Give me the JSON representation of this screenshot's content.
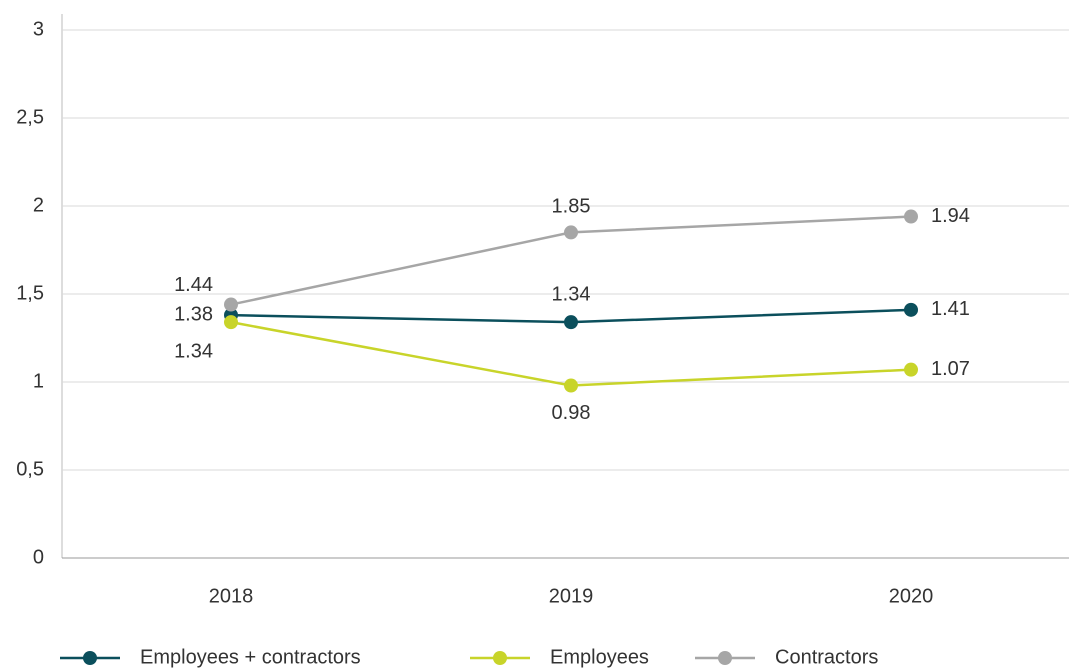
{
  "chart_data": {
    "type": "line",
    "categories": [
      "2018",
      "2019",
      "2020"
    ],
    "series": [
      {
        "name": "Employees + contractors",
        "color": "#0b4f5c",
        "values": [
          1.38,
          1.34,
          1.41
        ]
      },
      {
        "name": "Employees",
        "color": "#c8d42a",
        "values": [
          1.34,
          0.98,
          1.07
        ]
      },
      {
        "name": "Contractors",
        "color": "#a6a6a6",
        "values": [
          1.44,
          1.85,
          1.94
        ]
      }
    ],
    "ylim": [
      0,
      3
    ],
    "yticks": [
      0,
      {
        "value": 0.5,
        "label": "0,5"
      },
      1,
      {
        "value": 1.5,
        "label": "1,5"
      },
      2,
      {
        "value": 2.5,
        "label": "2,5"
      },
      3
    ],
    "grid": true,
    "legend": "bottom"
  }
}
